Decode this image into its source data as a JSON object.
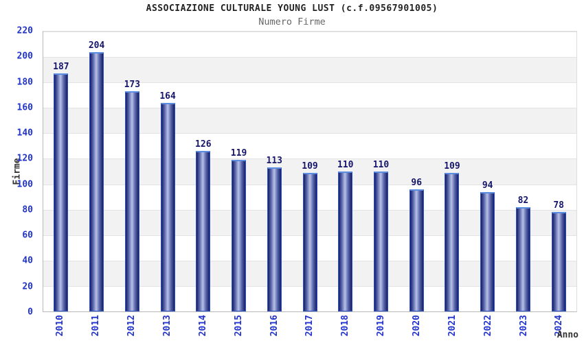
{
  "header": {
    "title": "ASSOCIAZIONE CULTURALE YOUNG LUST (c.f.09567901005)",
    "subtitle": "Numero Firme"
  },
  "chart_data": {
    "type": "bar",
    "title": "ASSOCIAZIONE CULTURALE YOUNG LUST (c.f.09567901005)",
    "subtitle": "Numero Firme",
    "xlabel": "Anno",
    "ylabel": "Firme",
    "categories": [
      "2010",
      "2011",
      "2012",
      "2013",
      "2014",
      "2015",
      "2016",
      "2017",
      "2018",
      "2019",
      "2020",
      "2021",
      "2022",
      "2023",
      "2024"
    ],
    "values": [
      187,
      204,
      173,
      164,
      126,
      119,
      113,
      109,
      110,
      110,
      96,
      109,
      94,
      82,
      78
    ],
    "ylim": [
      0,
      220
    ],
    "ytick_step": 20,
    "yticks": [
      0,
      20,
      40,
      60,
      80,
      100,
      120,
      140,
      160,
      180,
      200,
      220
    ],
    "grid": "horizontal",
    "legend": "none",
    "colors": {
      "tick_text": "#2233cc",
      "value_text": "#15156b",
      "title_text": "#222222",
      "subtitle_text": "#666666",
      "axis_title_text": "#333333",
      "bar_border": "#2e55cc",
      "bar_border_top": "#5a8de0",
      "bar_dark": "#161c60",
      "bar_mid": "#5a68ae",
      "bar_light": "#b9c1e6",
      "band_gray": "#f2f2f2",
      "gridline": "#e3e3e3"
    }
  }
}
